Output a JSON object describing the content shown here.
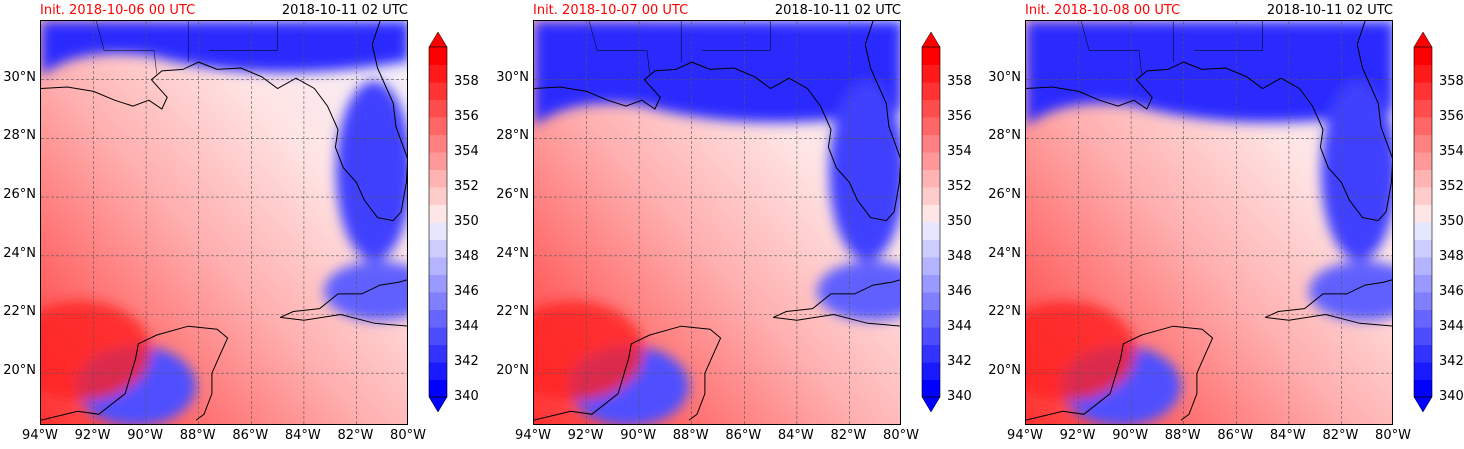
{
  "panels": [
    {
      "init": "Init. 2018-10-06 00 UTC",
      "valid": "2018-10-11 02 UTC"
    },
    {
      "init": "Init. 2018-10-07 00 UTC",
      "valid": "2018-10-11 02 UTC"
    },
    {
      "init": "Init. 2018-10-08 00 UTC",
      "valid": "2018-10-11 02 UTC"
    }
  ],
  "map": {
    "lon_labels": [
      "94°W",
      "92°W",
      "90°W",
      "88°W",
      "86°W",
      "84°W",
      "82°W",
      "80°W"
    ],
    "lat_labels": [
      "30°N",
      "28°N",
      "26°N",
      "24°N",
      "22°N",
      "20°N"
    ],
    "lon_range": [
      -94,
      -80
    ],
    "lat_range": [
      18.2,
      32
    ]
  },
  "colorbar": {
    "tick_labels": [
      "358",
      "356",
      "354",
      "352",
      "350",
      "348",
      "346",
      "344",
      "342",
      "340"
    ],
    "range": [
      340,
      360
    ],
    "colors": [
      "#0000ff",
      "#1a1aff",
      "#3333ff",
      "#4d4dff",
      "#6666ff",
      "#8080ff",
      "#9999ff",
      "#b3b3ff",
      "#ccccff",
      "#e6e6ff",
      "#ffe6e6",
      "#ffcccc",
      "#ffb3b3",
      "#ff9999",
      "#ff8080",
      "#ff6666",
      "#ff4d4d",
      "#ff3333",
      "#ff1a1a",
      "#ff0000"
    ]
  }
}
